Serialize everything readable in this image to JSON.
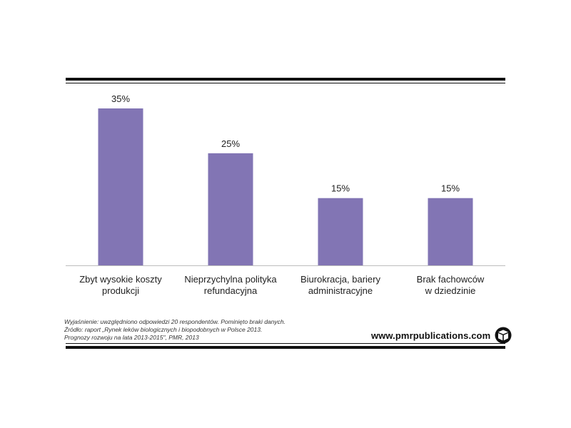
{
  "chart_data": {
    "type": "bar",
    "categories": [
      [
        "Zbyt wysokie koszty",
        "produkcji"
      ],
      [
        "Nieprzychylna polityka",
        "refundacyjna"
      ],
      [
        "Biurokracja, bariery",
        "administracyjne"
      ],
      [
        "Brak fachowców",
        "w dziedzinie"
      ]
    ],
    "values": [
      35,
      25,
      15,
      15
    ],
    "value_labels": [
      "35%",
      "25%",
      "15%",
      "15%"
    ],
    "unit": "%",
    "ylim": [
      0,
      35
    ],
    "bar_color": "#8275b4",
    "grid": false,
    "legend": false
  },
  "footnotes": {
    "line1": "Wyjaśnienie: uwzględniono odpowiedzi 20 respondentów. Pominięto braki danych.",
    "line2": "Źródło: raport „Rynek leków biologicznych i biopodobnych w Polsce 2013.",
    "line3": "Prognozy rozwoju na lata 2013-2015\", PMR, 2013"
  },
  "brand": {
    "text": "www.pmrpublications.com",
    "icon": "pmr-cube-logo"
  },
  "colors": {
    "bar": "#8275b4",
    "rules": "#111111",
    "background": "#ffffff"
  }
}
